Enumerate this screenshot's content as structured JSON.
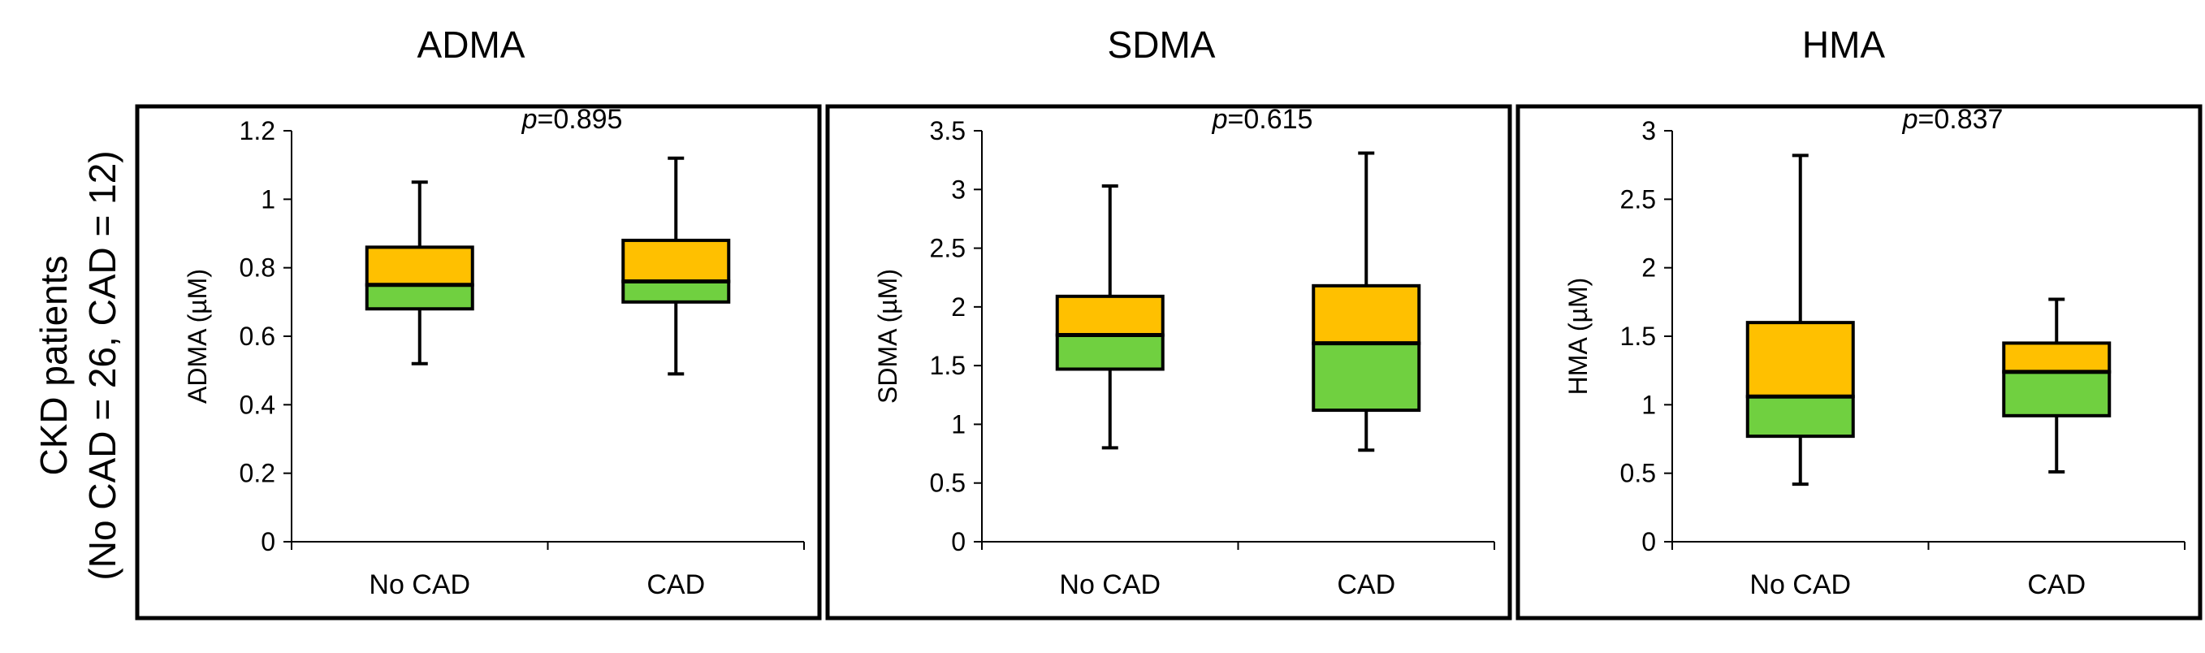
{
  "row_label": {
    "line1": "CKD patients",
    "line2": "(No CAD = 26, CAD = 12)"
  },
  "colors": {
    "upper_box": "#FFC000",
    "lower_box": "#70D040",
    "line": "#000000",
    "background": "#ffffff"
  },
  "chart_data": [
    {
      "type": "box",
      "title": "ADMA",
      "ylabel": "ADMA (µM)",
      "ylim": [
        0,
        1.2
      ],
      "yticks": [
        "0",
        "0.2",
        "0.4",
        "0.6",
        "0.8",
        "1",
        "1.2"
      ],
      "ytick_values": [
        0,
        0.2,
        0.4,
        0.6,
        0.8,
        1,
        1.2
      ],
      "categories": [
        "No CAD",
        "CAD"
      ],
      "p_label": "p",
      "p_value": "=0.895",
      "boxes": [
        {
          "category": "No CAD",
          "min": 0.52,
          "q1": 0.68,
          "median": 0.75,
          "q3": 0.86,
          "max": 1.05
        },
        {
          "category": "CAD",
          "min": 0.49,
          "q1": 0.7,
          "median": 0.76,
          "q3": 0.88,
          "max": 1.12
        }
      ]
    },
    {
      "type": "box",
      "title": "SDMA",
      "ylabel": "SDMA (µM)",
      "ylim": [
        0,
        3.5
      ],
      "yticks": [
        "0",
        "0.5",
        "1",
        "1.5",
        "2",
        "2.5",
        "3",
        "3.5"
      ],
      "ytick_values": [
        0,
        0.5,
        1,
        1.5,
        2,
        2.5,
        3,
        3.5
      ],
      "categories": [
        "No CAD",
        "CAD"
      ],
      "p_label": "p",
      "p_value": "=0.615",
      "boxes": [
        {
          "category": "No CAD",
          "min": 0.8,
          "q1": 1.47,
          "median": 1.76,
          "q3": 2.09,
          "max": 3.03
        },
        {
          "category": "CAD",
          "min": 0.78,
          "q1": 1.12,
          "median": 1.69,
          "q3": 2.18,
          "max": 3.31
        }
      ]
    },
    {
      "type": "box",
      "title": "HMA",
      "ylabel": "HMA (µM)",
      "ylim": [
        0,
        3
      ],
      "yticks": [
        "0",
        "0.5",
        "1",
        "1.5",
        "2",
        "2.5",
        "3"
      ],
      "ytick_values": [
        0,
        0.5,
        1,
        1.5,
        2,
        2.5,
        3
      ],
      "categories": [
        "No CAD",
        "CAD"
      ],
      "p_label": "p",
      "p_value": "=0.837",
      "boxes": [
        {
          "category": "No CAD",
          "min": 0.42,
          "q1": 0.77,
          "median": 1.06,
          "q3": 1.6,
          "max": 2.82
        },
        {
          "category": "CAD",
          "min": 0.51,
          "q1": 0.92,
          "median": 1.24,
          "q3": 1.45,
          "max": 1.77
        }
      ]
    }
  ]
}
